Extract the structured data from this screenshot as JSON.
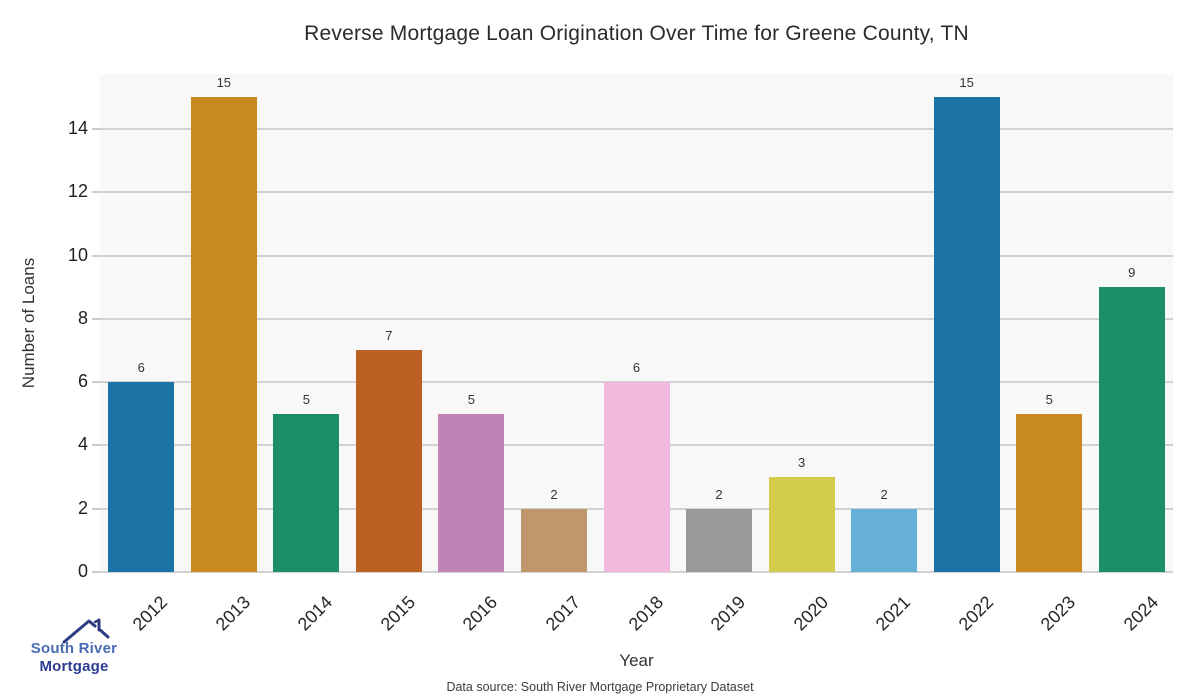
{
  "chart_data": {
    "type": "bar",
    "title": "Reverse Mortgage Loan Origination Over Time for Greene County, TN",
    "xlabel": "Year",
    "ylabel": "Number of Loans",
    "categories": [
      "2012",
      "2013",
      "2014",
      "2015",
      "2016",
      "2017",
      "2018",
      "2019",
      "2020",
      "2021",
      "2022",
      "2023",
      "2024"
    ],
    "values": [
      6,
      15,
      5,
      7,
      5,
      2,
      6,
      2,
      3,
      2,
      15,
      5,
      9
    ],
    "bar_colors": [
      "#1c74a6",
      "#c8891f",
      "#1a8f68",
      "#bc6122",
      "#c183b6",
      "#c0976c",
      "#f2b8de",
      "#999999",
      "#d3cb4b",
      "#66b0d8",
      "#1c74a6",
      "#c8891f",
      "#1a8f68"
    ],
    "ylim": [
      0,
      15.7
    ],
    "yticks": [
      0,
      2,
      4,
      6,
      8,
      10,
      12,
      14
    ],
    "grid": "horizontal",
    "legend": "none",
    "plot_bg": "#f8f8f8",
    "grid_color": "#d2d2d2"
  },
  "footer": {
    "source": "Data source: South River Mortgage Proprietary Dataset"
  },
  "logo": {
    "line1": "South River",
    "line2": "Mortgage",
    "color1": "#4a6cb4",
    "color2": "#2d3c92",
    "roof_color": "#2d3a80"
  }
}
